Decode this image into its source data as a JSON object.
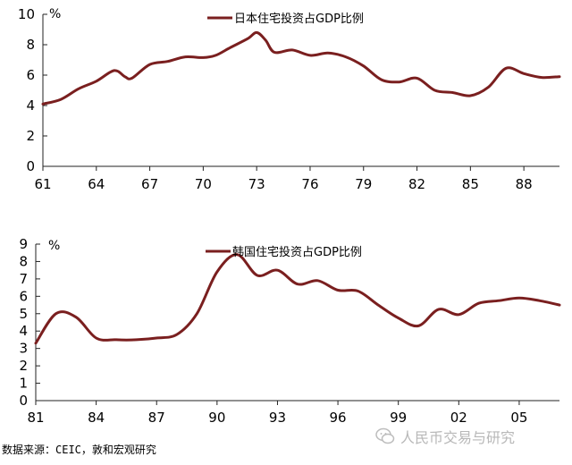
{
  "chart_data": [
    {
      "type": "line",
      "series": [
        {
          "name": "日本住宅投资占GDP比例",
          "color": "#7a1f1f",
          "points": [
            [
              61.0,
              4.1
            ],
            [
              62.0,
              4.4
            ],
            [
              63.0,
              5.1
            ],
            [
              64.0,
              5.6
            ],
            [
              65.0,
              6.3
            ],
            [
              65.6,
              5.9
            ],
            [
              66.0,
              5.8
            ],
            [
              67.0,
              6.7
            ],
            [
              68.0,
              6.9
            ],
            [
              69.0,
              7.2
            ],
            [
              70.0,
              7.15
            ],
            [
              70.7,
              7.3
            ],
            [
              71.5,
              7.8
            ],
            [
              72.5,
              8.4
            ],
            [
              73.0,
              8.8
            ],
            [
              73.5,
              8.3
            ],
            [
              74.0,
              7.5
            ],
            [
              75.0,
              7.65
            ],
            [
              76.0,
              7.3
            ],
            [
              77.0,
              7.45
            ],
            [
              78.0,
              7.2
            ],
            [
              79.0,
              6.6
            ],
            [
              80.0,
              5.7
            ],
            [
              81.0,
              5.55
            ],
            [
              82.0,
              5.8
            ],
            [
              83.0,
              5.0
            ],
            [
              84.0,
              4.85
            ],
            [
              85.0,
              4.65
            ],
            [
              86.0,
              5.2
            ],
            [
              87.0,
              6.45
            ],
            [
              88.0,
              6.1
            ],
            [
              89.0,
              5.85
            ],
            [
              90.0,
              5.9
            ]
          ]
        }
      ],
      "x_tick_labels": [
        "61",
        "64",
        "67",
        "70",
        "73",
        "76",
        "79",
        "82",
        "85",
        "88"
      ],
      "y_tick_labels": [
        "0",
        "2",
        "4",
        "6",
        "8",
        "10"
      ],
      "y_unit": "%",
      "xlim": [
        61,
        90
      ],
      "ylim": [
        0,
        10
      ],
      "grid": false,
      "legend_position": "top-center"
    },
    {
      "type": "line",
      "series": [
        {
          "name": "韩国住宅投资占GDP比例",
          "color": "#7a1f1f",
          "points": [
            [
              81.0,
              3.3
            ],
            [
              82.0,
              5.0
            ],
            [
              83.0,
              4.8
            ],
            [
              84.0,
              3.6
            ],
            [
              85.0,
              3.5
            ],
            [
              86.0,
              3.5
            ],
            [
              87.0,
              3.6
            ],
            [
              88.0,
              3.8
            ],
            [
              89.0,
              5.0
            ],
            [
              90.0,
              7.4
            ],
            [
              91.0,
              8.4
            ],
            [
              92.0,
              7.2
            ],
            [
              93.0,
              7.5
            ],
            [
              94.0,
              6.7
            ],
            [
              95.0,
              6.9
            ],
            [
              96.0,
              6.35
            ],
            [
              97.0,
              6.3
            ],
            [
              98.0,
              5.5
            ],
            [
              99.0,
              4.75
            ],
            [
              100.0,
              4.3
            ],
            [
              101.0,
              5.25
            ],
            [
              102.0,
              4.95
            ],
            [
              103.0,
              5.6
            ],
            [
              104.0,
              5.75
            ],
            [
              105.0,
              5.9
            ],
            [
              106.0,
              5.75
            ],
            [
              107.0,
              5.5
            ]
          ]
        }
      ],
      "x_tick_labels": [
        "81",
        "84",
        "87",
        "90",
        "93",
        "96",
        "99",
        "02",
        "05"
      ],
      "y_tick_labels": [
        "0",
        "1",
        "2",
        "3",
        "4",
        "5",
        "6",
        "7",
        "8",
        "9"
      ],
      "y_unit": "%",
      "xlim": [
        81,
        107
      ],
      "ylim": [
        0,
        9
      ],
      "grid": false,
      "legend_position": "top-center"
    }
  ],
  "source_note": "数据来源：CEIC，敦和宏观研究",
  "watermark_text": "人民币交易与研究",
  "watermark_icon": "wechat-icon"
}
